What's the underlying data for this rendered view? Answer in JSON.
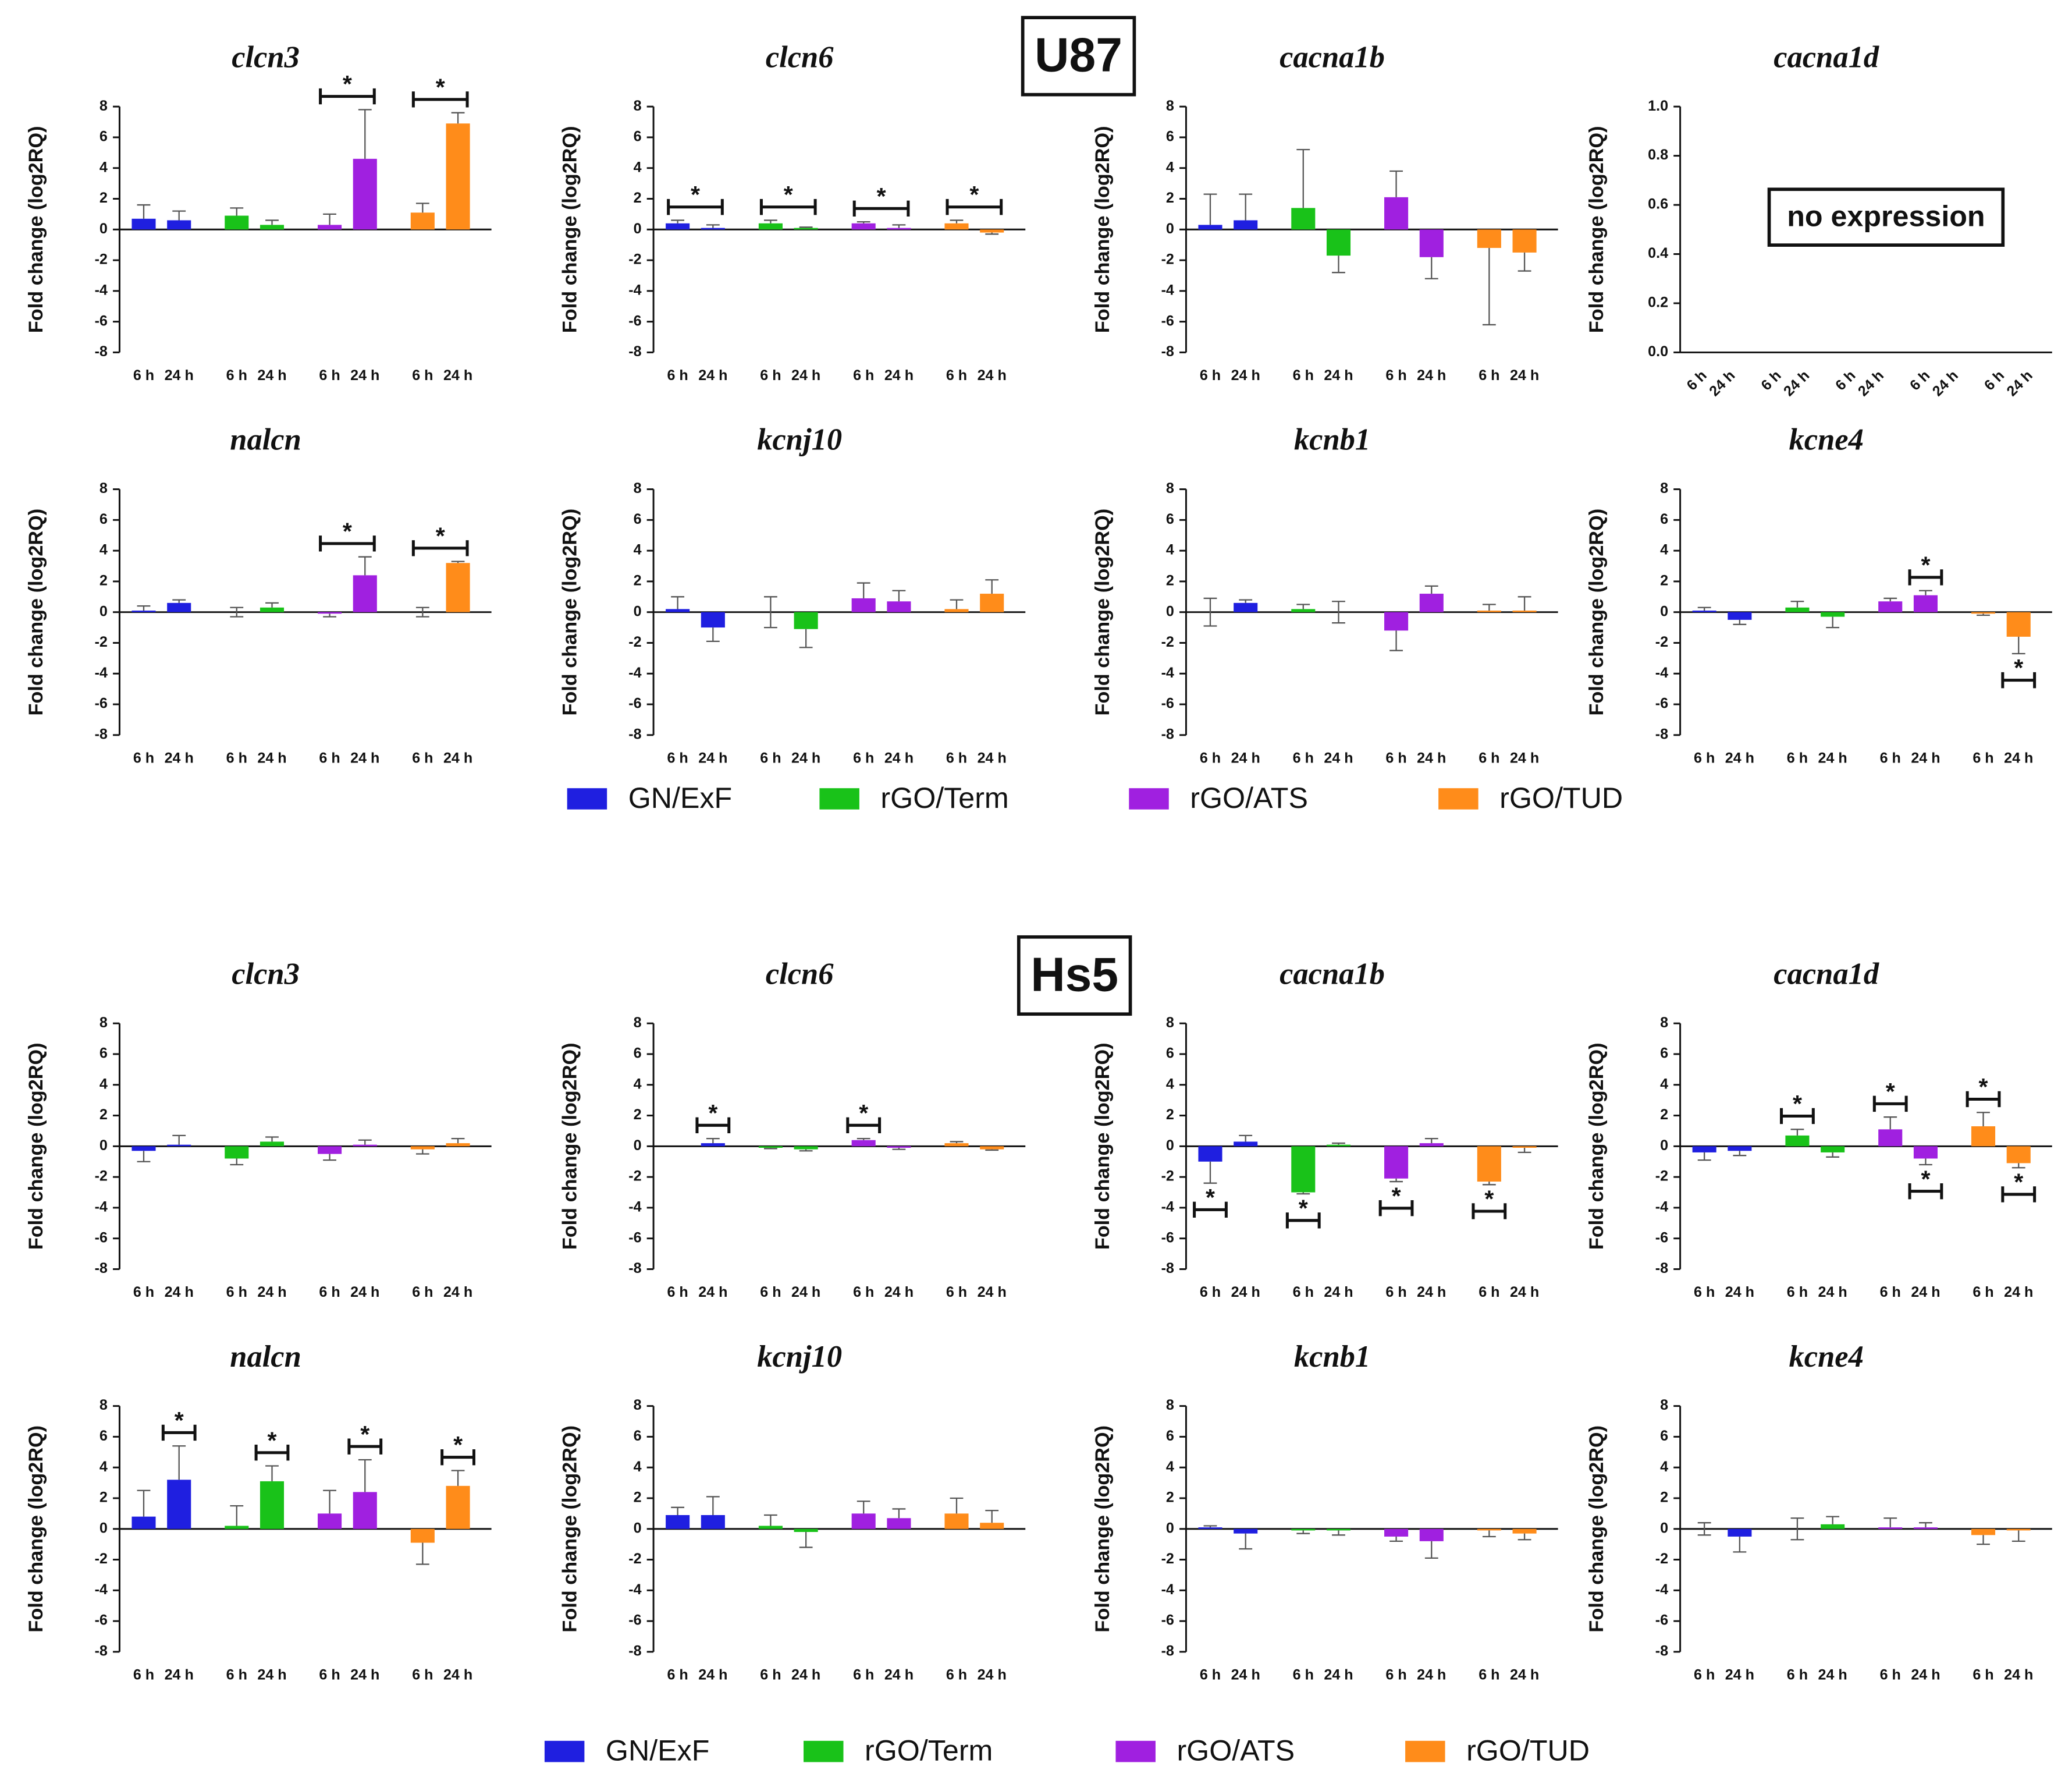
{
  "panels": [
    {
      "label": "U87",
      "color": "#e00000"
    },
    {
      "label": "Hs5",
      "color": "#5aa0e8"
    }
  ],
  "legend": [
    {
      "name": "GN/ExF",
      "color": "#1f1fe0"
    },
    {
      "name": "rGO/Term",
      "color": "#19c219"
    },
    {
      "name": "rGO/ATS",
      "color": "#a020e0"
    },
    {
      "name": "rGO/TUD",
      "color": "#ff8c1a"
    }
  ],
  "chart_data": [
    {
      "type": "bar",
      "title": "clcn3",
      "ylabel": "Fold change (log2RQ)",
      "categories": [
        "6 h",
        "24 h",
        "6 h",
        "24 h",
        "6 h",
        "24 h",
        "6 h",
        "24 h"
      ],
      "values": [
        0.7,
        0.6,
        0.9,
        0.3,
        0.3,
        4.6,
        1.1,
        6.9
      ],
      "errors": [
        0.9,
        0.6,
        0.5,
        0.3,
        0.7,
        3.2,
        0.6,
        0.7
      ],
      "ylim": [
        -8,
        8
      ],
      "yticks": [
        -8,
        -6,
        -4,
        -2,
        0,
        2,
        4,
        6,
        8
      ],
      "annotations": [
        {
          "text": "*",
          "bars": [
            4,
            5
          ],
          "side": "above"
        },
        {
          "text": "*",
          "bars": [
            6,
            7
          ],
          "side": "above"
        }
      ]
    },
    {
      "type": "bar",
      "title": "clcn6",
      "ylabel": "Fold change (log2RQ)",
      "categories": [
        "6 h",
        "24 h",
        "6 h",
        "24 h",
        "6 h",
        "24 h",
        "6 h",
        "24 h"
      ],
      "values": [
        0.4,
        0.1,
        0.4,
        0.1,
        0.4,
        0.1,
        0.4,
        -0.2
      ],
      "errors": [
        0.2,
        0.2,
        0.2,
        0.05,
        0.1,
        0.2,
        0.2,
        0.1
      ],
      "ylim": [
        -8,
        8
      ],
      "yticks": [
        -8,
        -6,
        -4,
        -2,
        0,
        2,
        4,
        6,
        8
      ],
      "annotations": [
        {
          "text": "*",
          "bars": [
            0,
            1
          ],
          "side": "above"
        },
        {
          "text": "*",
          "bars": [
            2,
            3
          ],
          "side": "above"
        },
        {
          "text": "*",
          "bars": [
            4,
            5
          ],
          "side": "above"
        },
        {
          "text": "*",
          "bars": [
            6,
            7
          ],
          "side": "above"
        }
      ]
    },
    {
      "type": "bar",
      "title": "cacna1b",
      "ylabel": "Fold change (log2RQ)",
      "categories": [
        "6 h",
        "24 h",
        "6 h",
        "24 h",
        "6 h",
        "24 h",
        "6 h",
        "24 h"
      ],
      "values": [
        0.3,
        0.6,
        1.4,
        -1.7,
        2.1,
        -1.8,
        -1.2,
        -1.5
      ],
      "errors": [
        2.0,
        1.7,
        3.8,
        1.1,
        1.7,
        1.4,
        5.0,
        1.2
      ],
      "ylim": [
        -8,
        8
      ],
      "yticks": [
        -8,
        -6,
        -4,
        -2,
        0,
        2,
        4,
        6,
        8
      ]
    },
    {
      "type": "bar",
      "title": "cacna1d",
      "ylabel": "Fold change (log2RQ)",
      "categories": [
        "6 h",
        "24 h",
        "6 h",
        "24 h",
        "6 h",
        "24 h",
        "6 h",
        "24 h",
        "6 h",
        "24 h"
      ],
      "ylim": [
        0,
        1
      ],
      "yticks": [
        {
          "value": 0,
          "label": "0.0"
        },
        {
          "value": 0.2,
          "label": "0.2"
        },
        {
          "value": 0.4,
          "label": "0.4"
        },
        {
          "value": 0.6,
          "label": "0.6"
        },
        {
          "value": 0.8,
          "label": "0.8"
        },
        {
          "value": 1,
          "label": "1.0"
        }
      ],
      "note": "no expression",
      "rotate_labels": true
    },
    {
      "type": "bar",
      "title": "nalcn",
      "ylabel": "Fold change (log2RQ)",
      "categories": [
        "6 h",
        "24 h",
        "6 h",
        "24 h",
        "6 h",
        "24 h",
        "6 h",
        "24 h"
      ],
      "values": [
        0.1,
        0.6,
        0,
        0.3,
        -0.1,
        2.4,
        0,
        3.2
      ],
      "errors": [
        0.3,
        0.2,
        0.3,
        0.3,
        0.2,
        1.2,
        0.3,
        0.1
      ],
      "ylim": [
        -8,
        8
      ],
      "yticks": [
        -8,
        -6,
        -4,
        -2,
        0,
        2,
        4,
        6,
        8
      ],
      "annotations": [
        {
          "text": "*",
          "bars": [
            4,
            5
          ],
          "side": "above"
        },
        {
          "text": "*",
          "bars": [
            6,
            7
          ],
          "side": "above"
        }
      ]
    },
    {
      "type": "bar",
      "title": "kcnj10",
      "ylabel": "Fold change (log2RQ)",
      "categories": [
        "6 h",
        "24 h",
        "6 h",
        "24 h",
        "6 h",
        "24 h",
        "6 h",
        "24 h"
      ],
      "values": [
        0.2,
        -1.0,
        0,
        -1.1,
        0.9,
        0.7,
        0.2,
        1.2
      ],
      "errors": [
        0.8,
        0.9,
        1.0,
        1.2,
        1.0,
        0.7,
        0.6,
        0.9
      ],
      "ylim": [
        -8,
        8
      ],
      "yticks": [
        -8,
        -6,
        -4,
        -2,
        0,
        2,
        4,
        6,
        8
      ]
    },
    {
      "type": "bar",
      "title": "kcnb1",
      "ylabel": "Fold change (log2RQ)",
      "categories": [
        "6 h",
        "24 h",
        "6 h",
        "24 h",
        "6 h",
        "24 h",
        "6 h",
        "24 h"
      ],
      "values": [
        0,
        0.6,
        0.2,
        0,
        -1.2,
        1.2,
        0.1,
        0.1
      ],
      "errors": [
        0.9,
        0.2,
        0.3,
        0.7,
        1.3,
        0.5,
        0.4,
        0.9
      ],
      "ylim": [
        -8,
        8
      ],
      "yticks": [
        -8,
        -6,
        -4,
        -2,
        0,
        2,
        4,
        6,
        8
      ]
    },
    {
      "type": "bar",
      "title": "kcne4",
      "ylabel": "Fold change (log2RQ)",
      "categories": [
        "6 h",
        "24 h",
        "6 h",
        "24 h",
        "6 h",
        "24 h",
        "6 h",
        "24 h"
      ],
      "values": [
        0.1,
        -0.5,
        0.3,
        -0.3,
        0.7,
        1.1,
        -0.1,
        -1.6
      ],
      "errors": [
        0.2,
        0.3,
        0.4,
        0.7,
        0.2,
        0.3,
        0.1,
        1.1
      ],
      "ylim": [
        -8,
        8
      ],
      "yticks": [
        -8,
        -6,
        -4,
        -2,
        0,
        2,
        4,
        6,
        8
      ],
      "annotations": [
        {
          "text": "*",
          "bars": [
            5
          ],
          "side": "above"
        },
        {
          "text": "*",
          "bars": [
            7
          ],
          "side": "below"
        }
      ]
    },
    {
      "type": "bar",
      "title": "clcn3",
      "ylabel": "Fold change (log2RQ)",
      "categories": [
        "6 h",
        "24 h",
        "6 h",
        "24 h",
        "6 h",
        "24 h",
        "6 h",
        "24 h"
      ],
      "values": [
        -0.3,
        0.1,
        -0.8,
        0.3,
        -0.5,
        0.1,
        -0.2,
        0.2
      ],
      "errors": [
        0.7,
        0.6,
        0.4,
        0.3,
        0.4,
        0.3,
        0.3,
        0.3
      ],
      "ylim": [
        -8,
        8
      ],
      "yticks": [
        -8,
        -6,
        -4,
        -2,
        0,
        2,
        4,
        6,
        8
      ]
    },
    {
      "type": "bar",
      "title": "clcn6",
      "ylabel": "Fold change (log2RQ)",
      "categories": [
        "6 h",
        "24 h",
        "6 h",
        "24 h",
        "6 h",
        "24 h",
        "6 h",
        "24 h"
      ],
      "values": [
        0,
        0.2,
        -0.1,
        -0.2,
        0.4,
        -0.1,
        0.2,
        -0.2
      ],
      "errors": [
        0,
        0.3,
        0.05,
        0.1,
        0.1,
        0.1,
        0.1,
        0.05
      ],
      "ylim": [
        -8,
        8
      ],
      "yticks": [
        -8,
        -6,
        -4,
        -2,
        0,
        2,
        4,
        6,
        8
      ],
      "annotations": [
        {
          "text": "*",
          "bars": [
            1
          ],
          "side": "above"
        },
        {
          "text": "*",
          "bars": [
            4
          ],
          "side": "above"
        }
      ]
    },
    {
      "type": "bar",
      "title": "cacna1b",
      "ylabel": "Fold change (log2RQ)",
      "categories": [
        "6 h",
        "24 h",
        "6 h",
        "24 h",
        "6 h",
        "24 h",
        "6 h",
        "24 h"
      ],
      "values": [
        -1.0,
        0.3,
        -3.0,
        0.1,
        -2.1,
        0.2,
        -2.3,
        -0.1
      ],
      "errors": [
        1.4,
        0.4,
        0.1,
        0.1,
        0.2,
        0.3,
        0.2,
        0.3
      ],
      "ylim": [
        -8,
        8
      ],
      "yticks": [
        -8,
        -6,
        -4,
        -2,
        0,
        2,
        4,
        6,
        8
      ],
      "annotations": [
        {
          "text": "*",
          "bars": [
            0
          ],
          "side": "below"
        },
        {
          "text": "*",
          "bars": [
            2
          ],
          "side": "below"
        },
        {
          "text": "*",
          "bars": [
            4
          ],
          "side": "below"
        },
        {
          "text": "*",
          "bars": [
            6
          ],
          "side": "below"
        }
      ]
    },
    {
      "type": "bar",
      "title": "cacna1d",
      "ylabel": "Fold change (log2RQ)",
      "categories": [
        "6 h",
        "24 h",
        "6 h",
        "24 h",
        "6 h",
        "24 h",
        "6 h",
        "24 h"
      ],
      "values": [
        -0.4,
        -0.3,
        0.7,
        -0.4,
        1.1,
        -0.8,
        1.3,
        -1.1
      ],
      "errors": [
        0.5,
        0.3,
        0.4,
        0.3,
        0.8,
        0.4,
        0.9,
        0.3
      ],
      "ylim": [
        -8,
        8
      ],
      "yticks": [
        -8,
        -6,
        -4,
        -2,
        0,
        2,
        4,
        6,
        8
      ],
      "annotations": [
        {
          "text": "*",
          "bars": [
            2
          ],
          "side": "above"
        },
        {
          "text": "*",
          "bars": [
            4
          ],
          "side": "above"
        },
        {
          "text": "*",
          "bars": [
            5
          ],
          "side": "below"
        },
        {
          "text": "*",
          "bars": [
            6
          ],
          "side": "above"
        },
        {
          "text": "*",
          "bars": [
            7
          ],
          "side": "below"
        }
      ]
    },
    {
      "type": "bar",
      "title": "nalcn",
      "ylabel": "Fold change (log2RQ)",
      "categories": [
        "6 h",
        "24 h",
        "6 h",
        "24 h",
        "6 h",
        "24 h",
        "6 h",
        "24 h"
      ],
      "values": [
        0.8,
        3.2,
        0.2,
        3.1,
        1.0,
        2.4,
        -0.9,
        2.8
      ],
      "errors": [
        1.7,
        2.2,
        1.3,
        1.0,
        1.5,
        2.1,
        1.4,
        1.0
      ],
      "ylim": [
        -8,
        8
      ],
      "yticks": [
        -8,
        -6,
        -4,
        -2,
        0,
        2,
        4,
        6,
        8
      ],
      "annotations": [
        {
          "text": "*",
          "bars": [
            1
          ],
          "side": "above"
        },
        {
          "text": "*",
          "bars": [
            3
          ],
          "side": "above"
        },
        {
          "text": "*",
          "bars": [
            5
          ],
          "side": "above"
        },
        {
          "text": "*",
          "bars": [
            7
          ],
          "side": "above"
        }
      ]
    },
    {
      "type": "bar",
      "title": "kcnj10",
      "ylabel": "Fold change (log2RQ)",
      "categories": [
        "6 h",
        "24 h",
        "6 h",
        "24 h",
        "6 h",
        "24 h",
        "6 h",
        "24 h"
      ],
      "values": [
        0.9,
        0.9,
        0.2,
        -0.2,
        1.0,
        0.7,
        1.0,
        0.4
      ],
      "errors": [
        0.5,
        1.2,
        0.7,
        1.0,
        0.8,
        0.6,
        1.0,
        0.8
      ],
      "ylim": [
        -8,
        8
      ],
      "yticks": [
        -8,
        -6,
        -4,
        -2,
        0,
        2,
        4,
        6,
        8
      ]
    },
    {
      "type": "bar",
      "title": "kcnb1",
      "ylabel": "Fold change (log2RQ)",
      "categories": [
        "6 h",
        "24 h",
        "6 h",
        "24 h",
        "6 h",
        "24 h",
        "6 h",
        "24 h"
      ],
      "values": [
        0.1,
        -0.3,
        -0.1,
        -0.1,
        -0.5,
        -0.8,
        -0.1,
        -0.3
      ],
      "errors": [
        0.1,
        1.0,
        0.2,
        0.3,
        0.3,
        1.1,
        0.4,
        0.4
      ],
      "ylim": [
        -8,
        8
      ],
      "yticks": [
        -8,
        -6,
        -4,
        -2,
        0,
        2,
        4,
        6,
        8
      ]
    },
    {
      "type": "bar",
      "title": "kcne4",
      "ylabel": "Fold change (log2RQ)",
      "categories": [
        "6 h",
        "24 h",
        "6 h",
        "24 h",
        "6 h",
        "24 h",
        "6 h",
        "24 h"
      ],
      "values": [
        0,
        -0.5,
        0,
        0.3,
        0.1,
        0.1,
        -0.4,
        -0.1
      ],
      "errors": [
        0.4,
        1.0,
        0.7,
        0.5,
        0.6,
        0.3,
        0.6,
        0.7
      ],
      "ylim": [
        -8,
        8
      ],
      "yticks": [
        -8,
        -6,
        -4,
        -2,
        0,
        2,
        4,
        6,
        8
      ]
    }
  ]
}
